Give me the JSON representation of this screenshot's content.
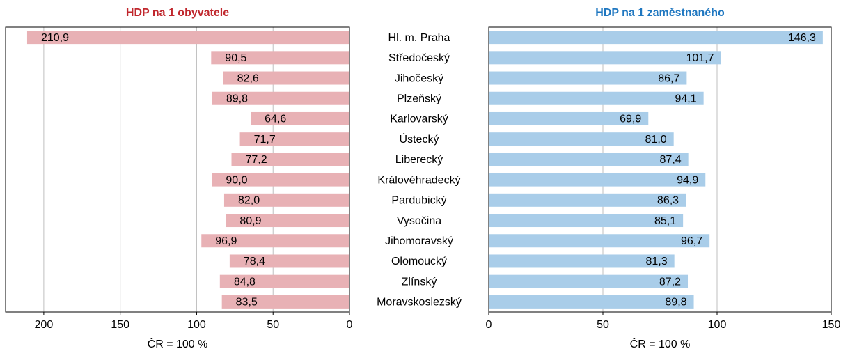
{
  "chart_data": [
    {
      "type": "bar",
      "title": "HDP na 1 obyvatele",
      "xlabel": "ČR = 100 %",
      "categories": [
        "Hl. m. Praha",
        "Středočeský",
        "Jihočeský",
        "Plzeňský",
        "Karlovarský",
        "Ústecký",
        "Liberecký",
        "Královéhradecký",
        "Pardubický",
        "Vysočina",
        "Jihomoravský",
        "Olomoucký",
        "Zlínský",
        "Moravskoslezský"
      ],
      "values": [
        210.9,
        90.5,
        82.6,
        89.8,
        64.6,
        71.7,
        77.2,
        90.0,
        82.0,
        80.9,
        96.9,
        78.4,
        84.8,
        83.5
      ],
      "value_labels": [
        "210,9",
        "90,5",
        "82,6",
        "89,8",
        "64,6",
        "71,7",
        "77,2",
        "90,0",
        "82,0",
        "80,9",
        "96,9",
        "78,4",
        "84,8",
        "83,5"
      ],
      "color": "#e8b1b5",
      "title_color": "#c0272d",
      "xlim": [
        0,
        225
      ],
      "xticks": [
        0,
        50,
        100,
        150,
        200
      ],
      "reversed": true,
      "grid": true
    },
    {
      "type": "bar",
      "title": "HDP na 1 zaměstnaného",
      "xlabel": "ČR = 100 %",
      "values": [
        146.3,
        101.7,
        86.7,
        94.1,
        69.9,
        81.0,
        87.4,
        94.9,
        86.3,
        85.1,
        96.7,
        81.3,
        87.2,
        89.8
      ],
      "value_labels": [
        "146,3",
        "101,7",
        "86,7",
        "94,1",
        "69,9",
        "81,0",
        "87,4",
        "94,9",
        "86,3",
        "85,1",
        "96,7",
        "81,3",
        "87,2",
        "89,8"
      ],
      "color": "#a9cde9",
      "title_color": "#1f77c0",
      "xlim": [
        0,
        150
      ],
      "xticks": [
        0,
        50,
        100,
        150
      ],
      "reversed": false,
      "grid": true
    }
  ]
}
